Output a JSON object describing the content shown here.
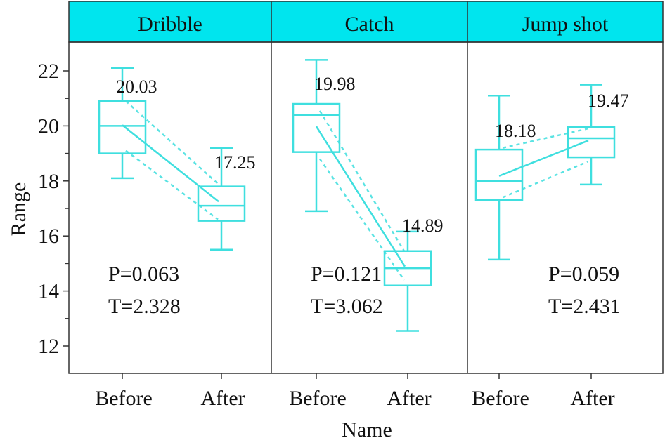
{
  "chart_data": {
    "type": "box",
    "ylabel": "Range",
    "xlabel": "Name",
    "ylim": [
      11,
      23
    ],
    "yticks": [
      12,
      14,
      16,
      18,
      20,
      22
    ],
    "grid": false,
    "colors": {
      "box": "#3fdfdf",
      "header": "#00e5ee",
      "axis": "#333333",
      "text": "#111111"
    },
    "panels": [
      {
        "title": "Dribble",
        "categories": [
          "Before",
          "After"
        ],
        "boxes": [
          {
            "whisker_low": 18.1,
            "q1": 19.0,
            "median": 20.0,
            "q3": 20.9,
            "whisker_high": 22.1,
            "mean": 20.03,
            "ci": [
              19.1,
              20.9
            ]
          },
          {
            "whisker_low": 15.5,
            "q1": 16.55,
            "median": 17.1,
            "q3": 17.8,
            "whisker_high": 19.2,
            "mean": 17.25,
            "ci": [
              16.6,
              17.9
            ]
          }
        ],
        "p_text": "P=0.063",
        "t_text": "T=2.328"
      },
      {
        "title": "Catch",
        "categories": [
          "Before",
          "After"
        ],
        "boxes": [
          {
            "whisker_low": 16.9,
            "q1": 19.05,
            "median": 20.4,
            "q3": 20.8,
            "whisker_high": 22.4,
            "mean": 19.98,
            "ci": [
              18.8,
              20.55
            ]
          },
          {
            "whisker_low": 12.55,
            "q1": 14.2,
            "median": 14.83,
            "q3": 15.45,
            "whisker_high": 16.16,
            "mean": 14.89,
            "ci": [
              14.4,
              15.45
            ]
          }
        ],
        "p_text": "P=0.121",
        "t_text": "T=3.062"
      },
      {
        "title": "Jump shot",
        "categories": [
          "Before",
          "After"
        ],
        "boxes": [
          {
            "whisker_low": 15.14,
            "q1": 17.3,
            "median": 18.0,
            "q3": 19.14,
            "whisker_high": 21.1,
            "mean": 18.18,
            "ci": [
              17.4,
              19.2
            ]
          },
          {
            "whisker_low": 17.87,
            "q1": 18.86,
            "median": 19.55,
            "q3": 19.96,
            "whisker_high": 21.5,
            "mean": 19.47,
            "ci": [
              18.7,
              19.9
            ]
          }
        ],
        "p_text": "P=0.059",
        "t_text": "T=2.431"
      }
    ]
  }
}
